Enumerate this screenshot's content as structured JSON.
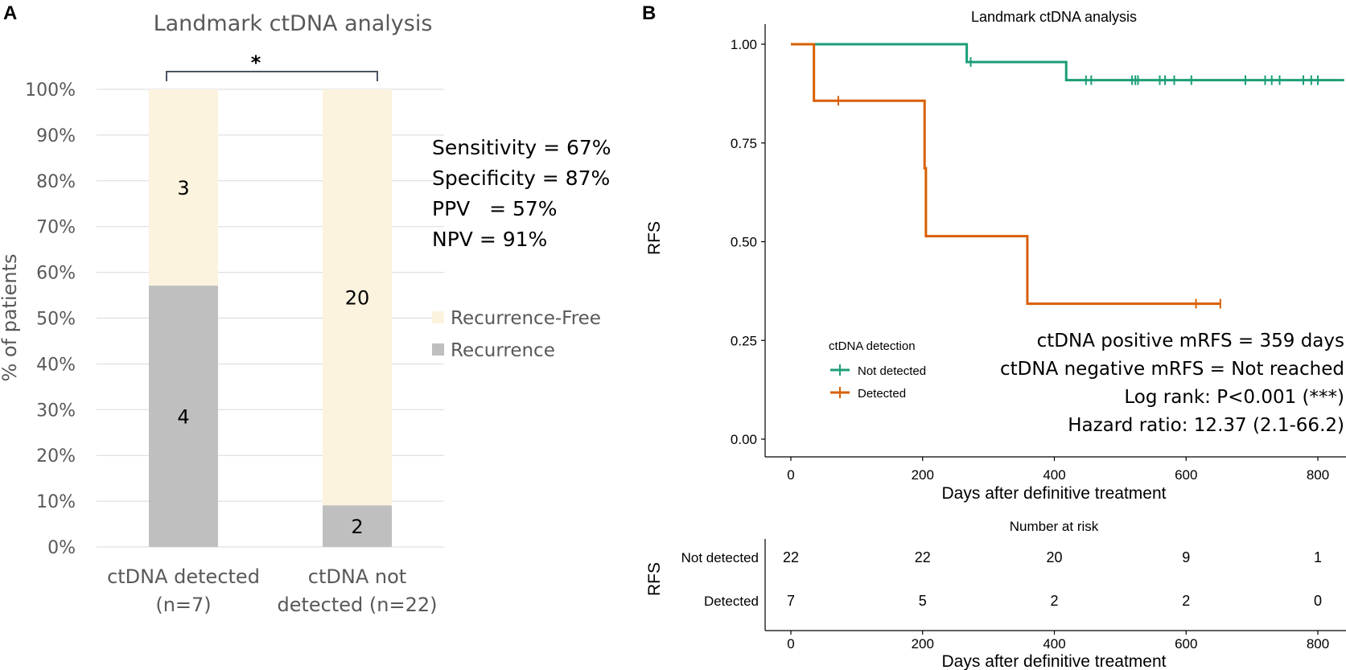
{
  "panels": {
    "a": "A",
    "b": "B"
  },
  "chart_data": [
    {
      "type": "bar",
      "stacked": true,
      "title": "Landmark ctDNA analysis",
      "ylabel": "% of patients",
      "ylim": [
        0,
        100
      ],
      "yticks": [
        "0%",
        "10%",
        "20%",
        "30%",
        "40%",
        "50%",
        "60%",
        "70%",
        "80%",
        "90%",
        "100%"
      ],
      "categories": [
        {
          "line1": "ctDNA detected",
          "line2": "(n=7)"
        },
        {
          "line1": "ctDNA not",
          "line2": "detected (n=22)"
        }
      ],
      "series": [
        {
          "name": "Recurrence",
          "color": "#bfbfbf",
          "counts": [
            4,
            2
          ],
          "values": [
            57.1,
            9.1
          ]
        },
        {
          "name": "Recurrence-Free",
          "color": "#fbf3de",
          "counts": [
            3,
            20
          ],
          "values": [
            42.9,
            90.9
          ]
        }
      ],
      "significance": "*",
      "stats": [
        "Sensitivity = 67%",
        "Specificity = 87%",
        "PPV   = 57%",
        "NPV = 91%"
      ],
      "legend_position": "right"
    },
    {
      "type": "line",
      "subtype": "kaplan-meier",
      "title": "Landmark ctDNA analysis",
      "xlabel": "Days after definitive treatment",
      "ylabel": "RFS",
      "xlim": [
        -40,
        840
      ],
      "ylim": [
        0,
        1
      ],
      "xticks": [
        0,
        200,
        400,
        600,
        800
      ],
      "yticks": [
        "0.00",
        "0.25",
        "0.50",
        "0.75",
        "1.00"
      ],
      "legend_title": "ctDNA detection",
      "series": [
        {
          "name": "Not detected",
          "color": "#1b9e77",
          "steps": [
            [
              0,
              1.0
            ],
            [
              267,
              0.955
            ],
            [
              418,
              0.909
            ],
            [
              840,
              0.909
            ]
          ],
          "censors": [
            [
              273,
              0.955
            ],
            [
              448,
              0.909
            ],
            [
              456,
              0.909
            ],
            [
              518,
              0.909
            ],
            [
              523,
              0.909
            ],
            [
              527,
              0.909
            ],
            [
              560,
              0.909
            ],
            [
              568,
              0.909
            ],
            [
              582,
              0.909
            ],
            [
              608,
              0.909
            ],
            [
              690,
              0.909
            ],
            [
              720,
              0.909
            ],
            [
              730,
              0.909
            ],
            [
              742,
              0.909
            ],
            [
              778,
              0.909
            ],
            [
              790,
              0.909
            ],
            [
              800,
              0.909
            ]
          ]
        },
        {
          "name": "Detected",
          "color": "#d95f02",
          "steps": [
            [
              0,
              1.0
            ],
            [
              35,
              0.857
            ],
            [
              203,
              0.686
            ],
            [
              205,
              0.514
            ],
            [
              359,
              0.343
            ],
            [
              652,
              0.343
            ]
          ],
          "censors": [
            [
              72,
              0.857
            ],
            [
              615,
              0.343
            ],
            [
              652,
              0.343
            ]
          ]
        }
      ],
      "annotations": [
        "ctDNA positive mRFS = 359 days",
        "ctDNA negative mRFS = Not reached",
        "Log rank: P<0.001 (***)",
        "Hazard ratio: 12.37 (2.1-66.2)"
      ]
    },
    {
      "type": "table",
      "title": "Number at risk",
      "ylabel": "RFS",
      "xlabel": "Days after definitive treatment",
      "xticks": [
        0,
        200,
        400,
        600,
        800
      ],
      "rows": [
        {
          "name": "Not detected",
          "color": "#1b9e77",
          "values": [
            22,
            22,
            20,
            9,
            1
          ]
        },
        {
          "name": "Detected",
          "color": "#d95f02",
          "values": [
            7,
            5,
            2,
            2,
            0
          ]
        }
      ]
    }
  ]
}
